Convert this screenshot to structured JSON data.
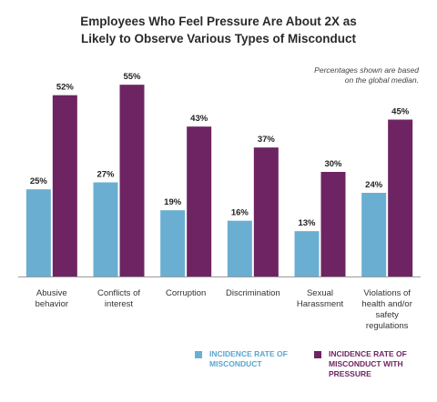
{
  "title_lines": [
    "Employees Who Feel Pressure Are About 2X as",
    "Likely to Observe Various Types of Misconduct"
  ],
  "note_lines": [
    "Percentages shown are based",
    "on the global median."
  ],
  "colors": {
    "series1": "#6aafd1",
    "series2": "#6e2462",
    "label1": "#5aa6cf",
    "label2": "#6e2462"
  },
  "legend": [
    {
      "lines": [
        "INCIDENCE RATE OF",
        "MISCONDUCT"
      ]
    },
    {
      "lines": [
        "INCIDENCE RATE OF",
        "MISCONDUCT WITH",
        "PRESSURE"
      ]
    }
  ],
  "chart_data": {
    "type": "bar",
    "categories": [
      [
        "Abusive",
        "behavior"
      ],
      [
        "Conflicts of",
        "interest"
      ],
      [
        "Corruption"
      ],
      [
        "Discrimination"
      ],
      [
        "Sexual",
        "Harassment"
      ],
      [
        "Violations of",
        "health and/or",
        "safety",
        "regulations"
      ]
    ],
    "series": [
      {
        "name": "INCIDENCE RATE OF MISCONDUCT",
        "values": [
          25,
          27,
          19,
          16,
          13,
          24
        ]
      },
      {
        "name": "INCIDENCE RATE OF MISCONDUCT WITH PRESSURE",
        "values": [
          52,
          55,
          43,
          37,
          30,
          45
        ]
      }
    ],
    "value_suffix": "%",
    "ylim": [
      0,
      60
    ],
    "grid": false,
    "legend_position": "bottom"
  }
}
